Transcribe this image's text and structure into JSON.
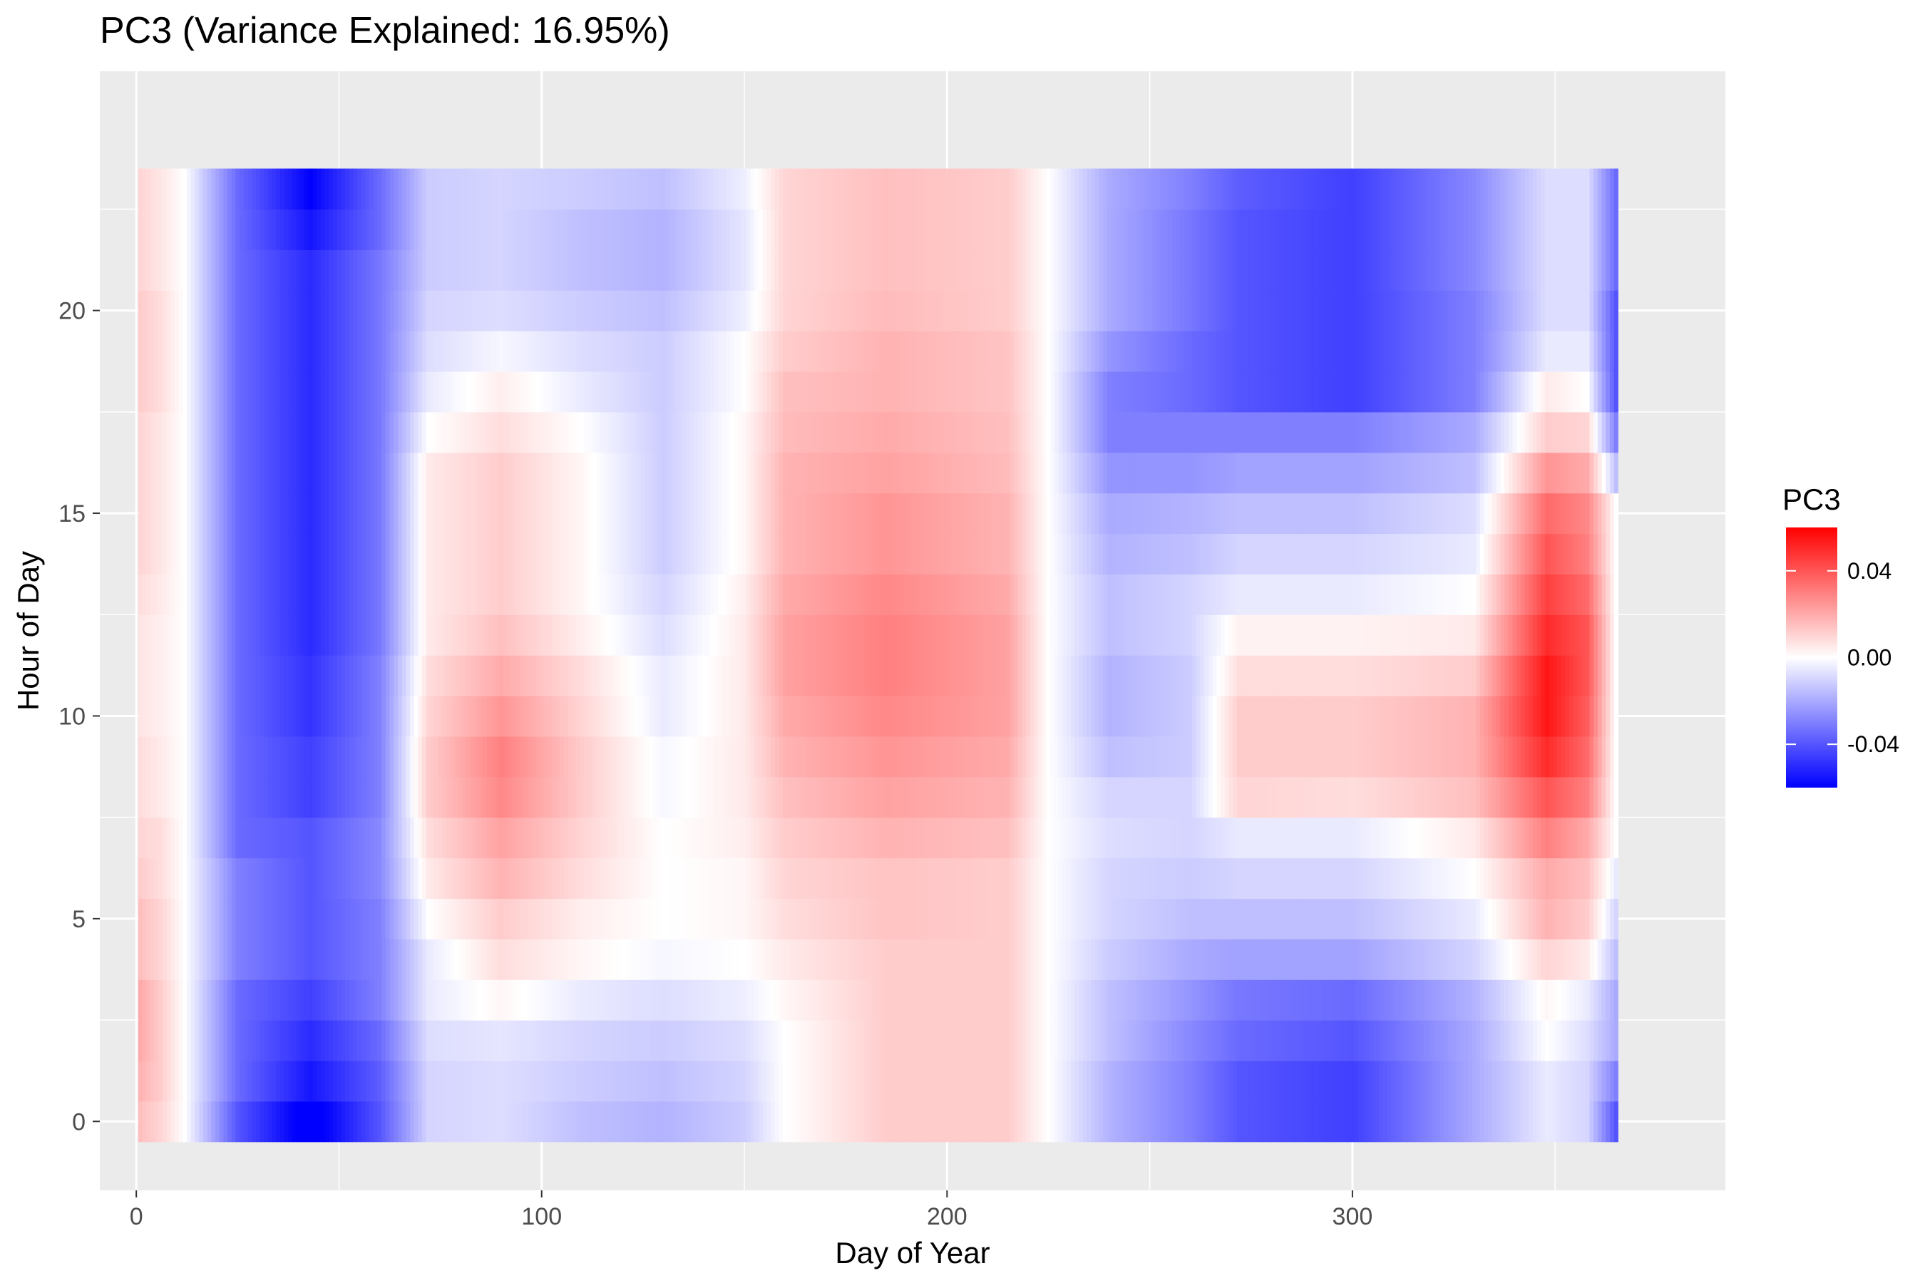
{
  "chart_data": {
    "type": "heatmap",
    "title": "PC3 (Variance Explained: 16.95%)",
    "xlabel": "Day of Year",
    "ylabel": "Hour of Day",
    "xlim": [
      -9,
      392
    ],
    "ylim": [
      -1.7,
      25.9
    ],
    "x_range": [
      1,
      365
    ],
    "y_range": [
      0,
      23
    ],
    "x_ticks": [
      {
        "value": 0,
        "label": "0"
      },
      {
        "value": 100,
        "label": "100"
      },
      {
        "value": 200,
        "label": "200"
      },
      {
        "value": 300,
        "label": "300"
      }
    ],
    "y_ticks": [
      {
        "value": 0,
        "label": "0"
      },
      {
        "value": 5,
        "label": "5"
      },
      {
        "value": 10,
        "label": "10"
      },
      {
        "value": 15,
        "label": "15"
      },
      {
        "value": 20,
        "label": "20"
      }
    ],
    "grid": true,
    "color_scale": {
      "low": "#0000FF",
      "mid": "#FFFFFF",
      "high": "#FF0000",
      "min": -0.06,
      "max": 0.06
    },
    "legend": {
      "title": "PC3",
      "position": "right",
      "ticks": [
        {
          "value": 0.04,
          "label": "0.04"
        },
        {
          "value": 0.0,
          "label": "0.00"
        },
        {
          "value": -0.04,
          "label": "-0.04"
        }
      ]
    },
    "profile_day_keys": [
      1,
      6,
      12,
      25,
      43,
      60,
      72,
      90,
      110,
      130,
      150,
      160,
      185,
      215,
      225,
      240,
      260,
      272,
      300,
      330,
      348,
      358,
      365
    ],
    "profile_values": [
      {
        "hour": 0,
        "values": [
          0.015,
          0.01,
          0.0,
          -0.04,
          -0.065,
          -0.04,
          -0.01,
          -0.008,
          -0.015,
          -0.018,
          -0.012,
          0.0,
          0.012,
          0.012,
          0.0,
          -0.018,
          -0.03,
          -0.04,
          -0.045,
          -0.02,
          -0.005,
          -0.01,
          -0.04
        ]
      },
      {
        "hour": 1,
        "values": [
          0.018,
          0.012,
          0.0,
          -0.035,
          -0.055,
          -0.038,
          -0.01,
          -0.008,
          -0.012,
          -0.015,
          -0.01,
          0.0,
          0.012,
          0.012,
          0.0,
          -0.018,
          -0.03,
          -0.04,
          -0.045,
          -0.02,
          -0.005,
          -0.01,
          -0.03
        ]
      },
      {
        "hour": 2,
        "values": [
          0.02,
          0.012,
          0.0,
          -0.035,
          -0.05,
          -0.035,
          -0.008,
          -0.006,
          -0.01,
          -0.012,
          -0.008,
          0.0,
          0.012,
          0.012,
          0.0,
          -0.015,
          -0.028,
          -0.035,
          -0.04,
          -0.02,
          0.0,
          -0.008,
          -0.02
        ]
      },
      {
        "hour": 3,
        "values": [
          0.02,
          0.012,
          0.0,
          -0.035,
          -0.045,
          -0.03,
          -0.005,
          0.002,
          -0.005,
          -0.008,
          -0.004,
          0.002,
          0.012,
          0.012,
          0.0,
          -0.015,
          -0.025,
          -0.032,
          -0.035,
          -0.018,
          0.002,
          -0.005,
          -0.02
        ]
      },
      {
        "hour": 4,
        "values": [
          0.015,
          0.01,
          0.0,
          -0.03,
          -0.04,
          -0.03,
          -0.005,
          0.008,
          0.002,
          -0.002,
          0.0,
          0.005,
          0.012,
          0.012,
          0.0,
          -0.012,
          -0.02,
          -0.022,
          -0.022,
          -0.01,
          0.01,
          0.005,
          -0.015
        ]
      },
      {
        "hour": 5,
        "values": [
          0.015,
          0.01,
          0.0,
          -0.03,
          -0.04,
          -0.03,
          0.0,
          0.012,
          0.004,
          0.0,
          0.002,
          0.008,
          0.014,
          0.012,
          0.0,
          -0.01,
          -0.015,
          -0.015,
          -0.015,
          -0.005,
          0.018,
          0.012,
          -0.01
        ]
      },
      {
        "hour": 6,
        "values": [
          0.012,
          0.008,
          0.0,
          -0.03,
          -0.04,
          -0.028,
          0.005,
          0.018,
          0.008,
          0.0,
          0.002,
          0.01,
          0.014,
          0.012,
          0.0,
          -0.01,
          -0.012,
          -0.01,
          -0.01,
          0.0,
          0.02,
          0.015,
          -0.005
        ]
      },
      {
        "hour": 7,
        "values": [
          0.01,
          0.008,
          0.0,
          -0.035,
          -0.04,
          -0.028,
          0.008,
          0.022,
          0.01,
          0.0,
          0.004,
          0.012,
          0.018,
          0.015,
          0.0,
          -0.008,
          -0.01,
          -0.005,
          -0.005,
          0.005,
          0.03,
          0.02,
          0.0
        ]
      },
      {
        "hour": 8,
        "values": [
          0.008,
          0.005,
          0.0,
          -0.035,
          -0.045,
          -0.03,
          0.012,
          0.028,
          0.012,
          -0.002,
          0.005,
          0.015,
          0.022,
          0.018,
          0.0,
          -0.01,
          -0.01,
          0.01,
          0.008,
          0.015,
          0.04,
          0.03,
          0.0
        ]
      },
      {
        "hour": 9,
        "values": [
          0.008,
          0.005,
          0.0,
          -0.035,
          -0.045,
          -0.03,
          0.012,
          0.03,
          0.012,
          -0.002,
          0.005,
          0.018,
          0.025,
          0.02,
          0.0,
          -0.015,
          -0.012,
          0.012,
          0.012,
          0.018,
          0.05,
          0.035,
          0.0
        ]
      },
      {
        "hour": 10,
        "values": [
          0.006,
          0.004,
          0.0,
          -0.035,
          -0.048,
          -0.03,
          0.01,
          0.025,
          0.01,
          -0.005,
          0.005,
          0.02,
          0.028,
          0.022,
          0.0,
          -0.018,
          -0.012,
          0.012,
          0.012,
          0.018,
          0.055,
          0.038,
          0.0
        ]
      },
      {
        "hour": 11,
        "values": [
          0.006,
          0.004,
          0.0,
          -0.035,
          -0.048,
          -0.03,
          0.008,
          0.02,
          0.008,
          -0.005,
          0.005,
          0.022,
          0.03,
          0.022,
          0.0,
          -0.018,
          -0.012,
          0.008,
          0.008,
          0.012,
          0.055,
          0.04,
          0.0
        ]
      },
      {
        "hour": 12,
        "values": [
          0.006,
          0.004,
          0.0,
          -0.035,
          -0.05,
          -0.032,
          0.005,
          0.015,
          0.004,
          -0.008,
          0.005,
          0.022,
          0.03,
          0.022,
          0.0,
          -0.015,
          -0.01,
          0.003,
          0.003,
          0.005,
          0.05,
          0.04,
          0.0
        ]
      },
      {
        "hour": 13,
        "values": [
          0.008,
          0.005,
          0.0,
          -0.035,
          -0.05,
          -0.032,
          0.005,
          0.012,
          0.002,
          -0.01,
          0.004,
          0.02,
          0.028,
          0.02,
          0.0,
          -0.015,
          -0.01,
          -0.005,
          -0.005,
          0.0,
          0.045,
          0.035,
          0.0
        ]
      },
      {
        "hour": 14,
        "values": [
          0.01,
          0.006,
          0.0,
          -0.035,
          -0.05,
          -0.032,
          0.005,
          0.012,
          0.002,
          -0.012,
          0.002,
          0.018,
          0.025,
          0.018,
          0.0,
          -0.018,
          -0.015,
          -0.01,
          -0.01,
          -0.005,
          0.04,
          0.03,
          0.0
        ]
      },
      {
        "hour": 15,
        "values": [
          0.01,
          0.006,
          0.0,
          -0.035,
          -0.05,
          -0.032,
          0.005,
          0.012,
          0.002,
          -0.012,
          0.002,
          0.018,
          0.025,
          0.018,
          0.0,
          -0.02,
          -0.018,
          -0.015,
          -0.015,
          -0.008,
          0.035,
          0.028,
          0.0
        ]
      },
      {
        "hour": 16,
        "values": [
          0.01,
          0.006,
          0.0,
          -0.035,
          -0.05,
          -0.032,
          0.005,
          0.012,
          0.002,
          -0.012,
          0.002,
          0.018,
          0.022,
          0.016,
          0.0,
          -0.025,
          -0.025,
          -0.022,
          -0.022,
          -0.015,
          0.025,
          0.02,
          -0.015
        ]
      },
      {
        "hour": 17,
        "values": [
          0.01,
          0.006,
          0.0,
          -0.035,
          -0.05,
          -0.032,
          0.0,
          0.008,
          0.0,
          -0.012,
          0.002,
          0.016,
          0.02,
          0.015,
          0.0,
          -0.03,
          -0.03,
          -0.03,
          -0.03,
          -0.02,
          0.012,
          0.01,
          -0.03
        ]
      },
      {
        "hour": 18,
        "values": [
          0.012,
          0.008,
          0.0,
          -0.035,
          -0.05,
          -0.032,
          -0.005,
          0.004,
          -0.005,
          -0.012,
          0.0,
          0.015,
          0.018,
          0.014,
          0.0,
          -0.03,
          -0.035,
          -0.04,
          -0.045,
          -0.03,
          0.005,
          0.0,
          -0.04
        ]
      },
      {
        "hour": 19,
        "values": [
          0.012,
          0.008,
          0.0,
          -0.035,
          -0.05,
          -0.032,
          -0.008,
          -0.002,
          -0.008,
          -0.012,
          0.0,
          0.012,
          0.018,
          0.014,
          0.0,
          -0.025,
          -0.035,
          -0.04,
          -0.045,
          -0.03,
          -0.005,
          -0.005,
          -0.04
        ]
      },
      {
        "hour": 20,
        "values": [
          0.012,
          0.008,
          0.0,
          -0.035,
          -0.05,
          -0.032,
          -0.01,
          -0.008,
          -0.012,
          -0.015,
          -0.004,
          0.01,
          0.016,
          0.012,
          0.0,
          -0.02,
          -0.032,
          -0.04,
          -0.045,
          -0.03,
          -0.008,
          -0.008,
          -0.04
        ]
      },
      {
        "hour": 21,
        "values": [
          0.01,
          0.006,
          0.0,
          -0.035,
          -0.05,
          -0.032,
          -0.012,
          -0.01,
          -0.015,
          -0.018,
          -0.006,
          0.01,
          0.015,
          0.012,
          0.0,
          -0.02,
          -0.032,
          -0.04,
          -0.045,
          -0.028,
          -0.008,
          -0.008,
          -0.035
        ]
      },
      {
        "hour": 22,
        "values": [
          0.01,
          0.006,
          0.0,
          -0.035,
          -0.055,
          -0.035,
          -0.012,
          -0.01,
          -0.015,
          -0.018,
          -0.006,
          0.01,
          0.015,
          0.012,
          0.0,
          -0.02,
          -0.032,
          -0.04,
          -0.045,
          -0.028,
          -0.008,
          -0.008,
          -0.035
        ]
      },
      {
        "hour": 23,
        "values": [
          0.01,
          0.006,
          0.0,
          -0.035,
          -0.06,
          -0.035,
          -0.012,
          -0.01,
          -0.012,
          -0.015,
          -0.004,
          0.01,
          0.015,
          0.012,
          0.0,
          -0.02,
          -0.03,
          -0.038,
          -0.045,
          -0.028,
          -0.008,
          -0.008,
          -0.035
        ]
      }
    ]
  }
}
